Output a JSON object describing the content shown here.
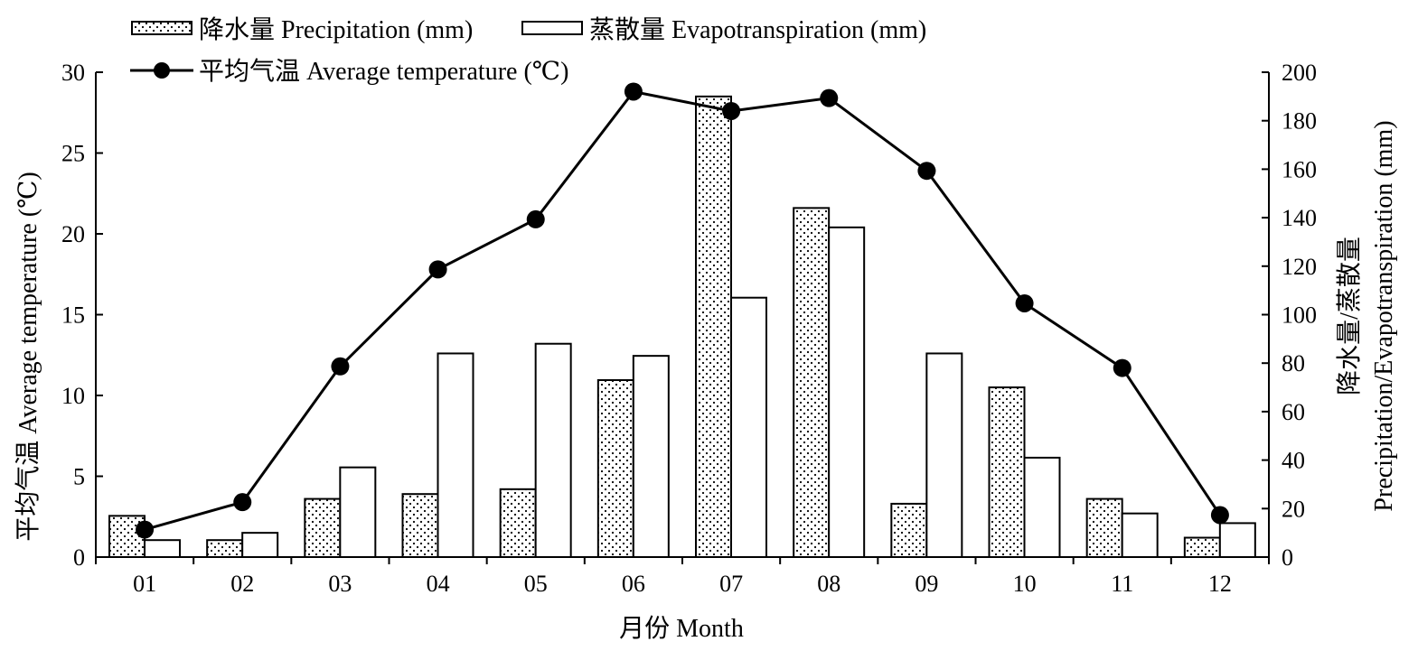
{
  "chart_data": {
    "type": "bar",
    "title": "",
    "categories": [
      "01",
      "02",
      "03",
      "04",
      "05",
      "06",
      "07",
      "08",
      "09",
      "10",
      "11",
      "12"
    ],
    "xlabel": "月份 Month",
    "ylabel_left": "平均气温 Average temperature (℃)",
    "ylabel_right_line1": "降水量/蒸散量",
    "ylabel_right_line2": "Precipitation/Evapotranspiration (mm)",
    "ylim_left": [
      0,
      30
    ],
    "yticks_left": [
      0,
      5,
      10,
      15,
      20,
      25,
      30
    ],
    "ylim_right": [
      0,
      200
    ],
    "yticks_right": [
      0,
      20,
      40,
      60,
      80,
      100,
      120,
      140,
      160,
      180,
      200
    ],
    "grid": false,
    "legend_position": "top-left",
    "series": [
      {
        "name": "降水量 Precipitation (mm)",
        "kind": "bar",
        "axis": "right",
        "pattern": "dotted",
        "values": [
          17,
          7,
          24,
          26,
          28,
          73,
          190,
          144,
          22,
          70,
          24,
          8
        ]
      },
      {
        "name": "蒸散量 Evapotranspiration (mm)",
        "kind": "bar",
        "axis": "right",
        "pattern": "hollow",
        "values": [
          7,
          10,
          37,
          84,
          88,
          83,
          107,
          136,
          84,
          41,
          18,
          14
        ]
      },
      {
        "name": "平均气温 Average temperature (℃)",
        "kind": "line",
        "axis": "left",
        "marker": "filled-circle",
        "values": [
          1.7,
          3.4,
          11.8,
          17.8,
          20.9,
          28.8,
          27.6,
          28.4,
          23.9,
          15.7,
          11.7,
          2.6
        ]
      }
    ]
  }
}
